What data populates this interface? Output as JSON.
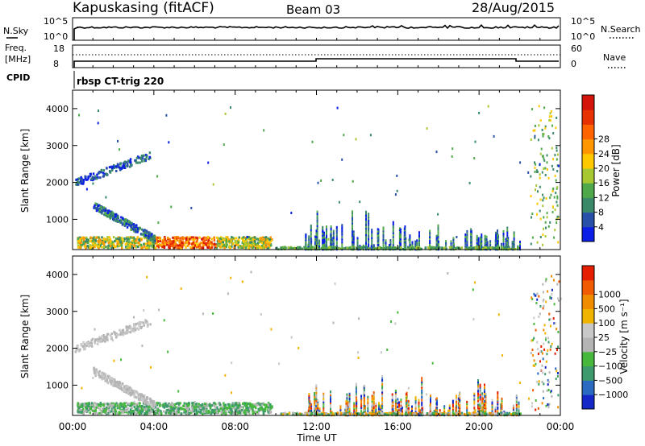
{
  "header": {
    "station": "Kapuskasing (fitACF)",
    "beam": "Beam 03",
    "date": "28/Aug/2015"
  },
  "noise_panel": {
    "left_label": "N.Sky",
    "left_ticks": [
      "10^5",
      "10^0"
    ],
    "right_ticks": [
      "10^5",
      "10^0"
    ],
    "right_label": "N.Search"
  },
  "freq_panel": {
    "left_label_1": "Freq.",
    "left_label_2": "[MHz]",
    "left_ticks": [
      "18",
      "8"
    ],
    "right_ticks": [
      "60",
      "0"
    ],
    "right_label": "Nave"
  },
  "cpid": {
    "label": "CPID",
    "value": "rbsp CT-trig 220"
  },
  "chart_data": [
    {
      "type": "heatmap",
      "parameter": "power",
      "ylabel": "Slant Range [km]",
      "yticks": [
        1000,
        2000,
        3000,
        4000
      ],
      "ylim": [
        180,
        4500
      ],
      "xlim": [
        0,
        24
      ],
      "colorbar": {
        "label": "Power [dB]",
        "ticks": [
          "4",
          "8",
          "12",
          "16",
          "20",
          "24",
          "28"
        ],
        "colors": [
          "#0a1ee6",
          "#2850a8",
          "#3a8a6a",
          "#4fa84a",
          "#a8c832",
          "#ffc800",
          "#ff9600",
          "#ff6400",
          "#e63200",
          "#d2140a"
        ]
      }
    },
    {
      "type": "heatmap",
      "parameter": "velocity",
      "ylabel": "Slant Range [km]",
      "yticks": [
        1000,
        2000,
        3000,
        4000
      ],
      "ylim": [
        180,
        4500
      ],
      "xlim": [
        0,
        24
      ],
      "xlabel": "Time UT",
      "xticks": [
        "00:00",
        "04:00",
        "08:00",
        "12:00",
        "16:00",
        "20:00",
        "00:00"
      ],
      "colorbar": {
        "label": "Velocity [m s⁻¹]",
        "ticks": [
          "1000",
          "500",
          "100",
          "25",
          "−25",
          "−100",
          "−500",
          "−1000"
        ],
        "colors": [
          "#1428c8",
          "#2a6ac0",
          "#3c9a6c",
          "#46b83c",
          "#b4b4b4",
          "#c8c8c8",
          "#f0b400",
          "#f08c00",
          "#f05a00",
          "#e61e00"
        ]
      }
    }
  ]
}
